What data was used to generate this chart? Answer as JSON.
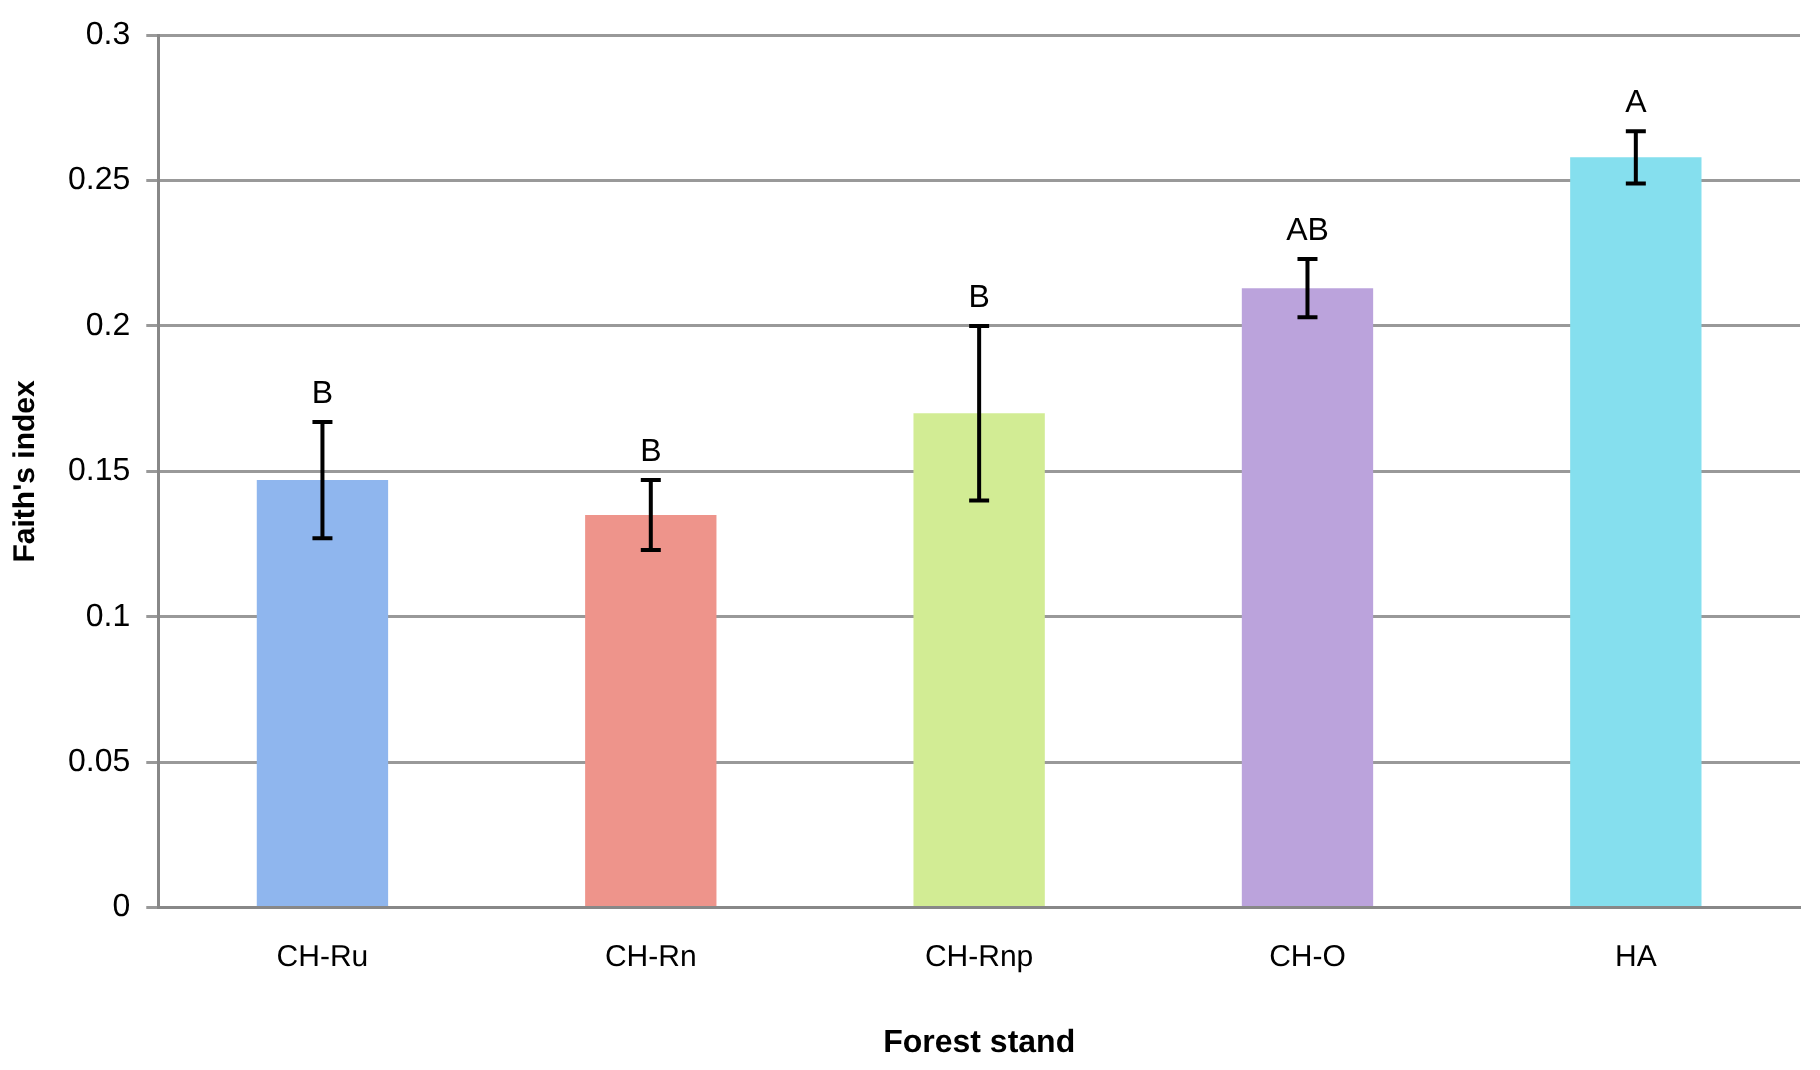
{
  "chart_data": {
    "type": "bar",
    "xlabel": "Forest stand",
    "ylabel": "Faith's index",
    "categories": [
      "CH-Ru",
      "CH-Rn",
      "CH-Rnp",
      "CH-O",
      "HA"
    ],
    "values": [
      0.147,
      0.135,
      0.17,
      0.213,
      0.258
    ],
    "errors": [
      0.02,
      0.012,
      0.03,
      0.01,
      0.009
    ],
    "colors": [
      "#8fb6ee",
      "#ee948b",
      "#d2ec94",
      "#bba3dc",
      "#85dfee"
    ],
    "value_labels": [
      "B",
      "B",
      "B",
      "AB",
      "A"
    ],
    "ylim": [
      0,
      0.3
    ],
    "yticks": [
      0,
      0.05,
      0.1,
      0.15,
      0.2,
      0.25,
      0.3
    ],
    "grid": "y",
    "legend": false
  }
}
